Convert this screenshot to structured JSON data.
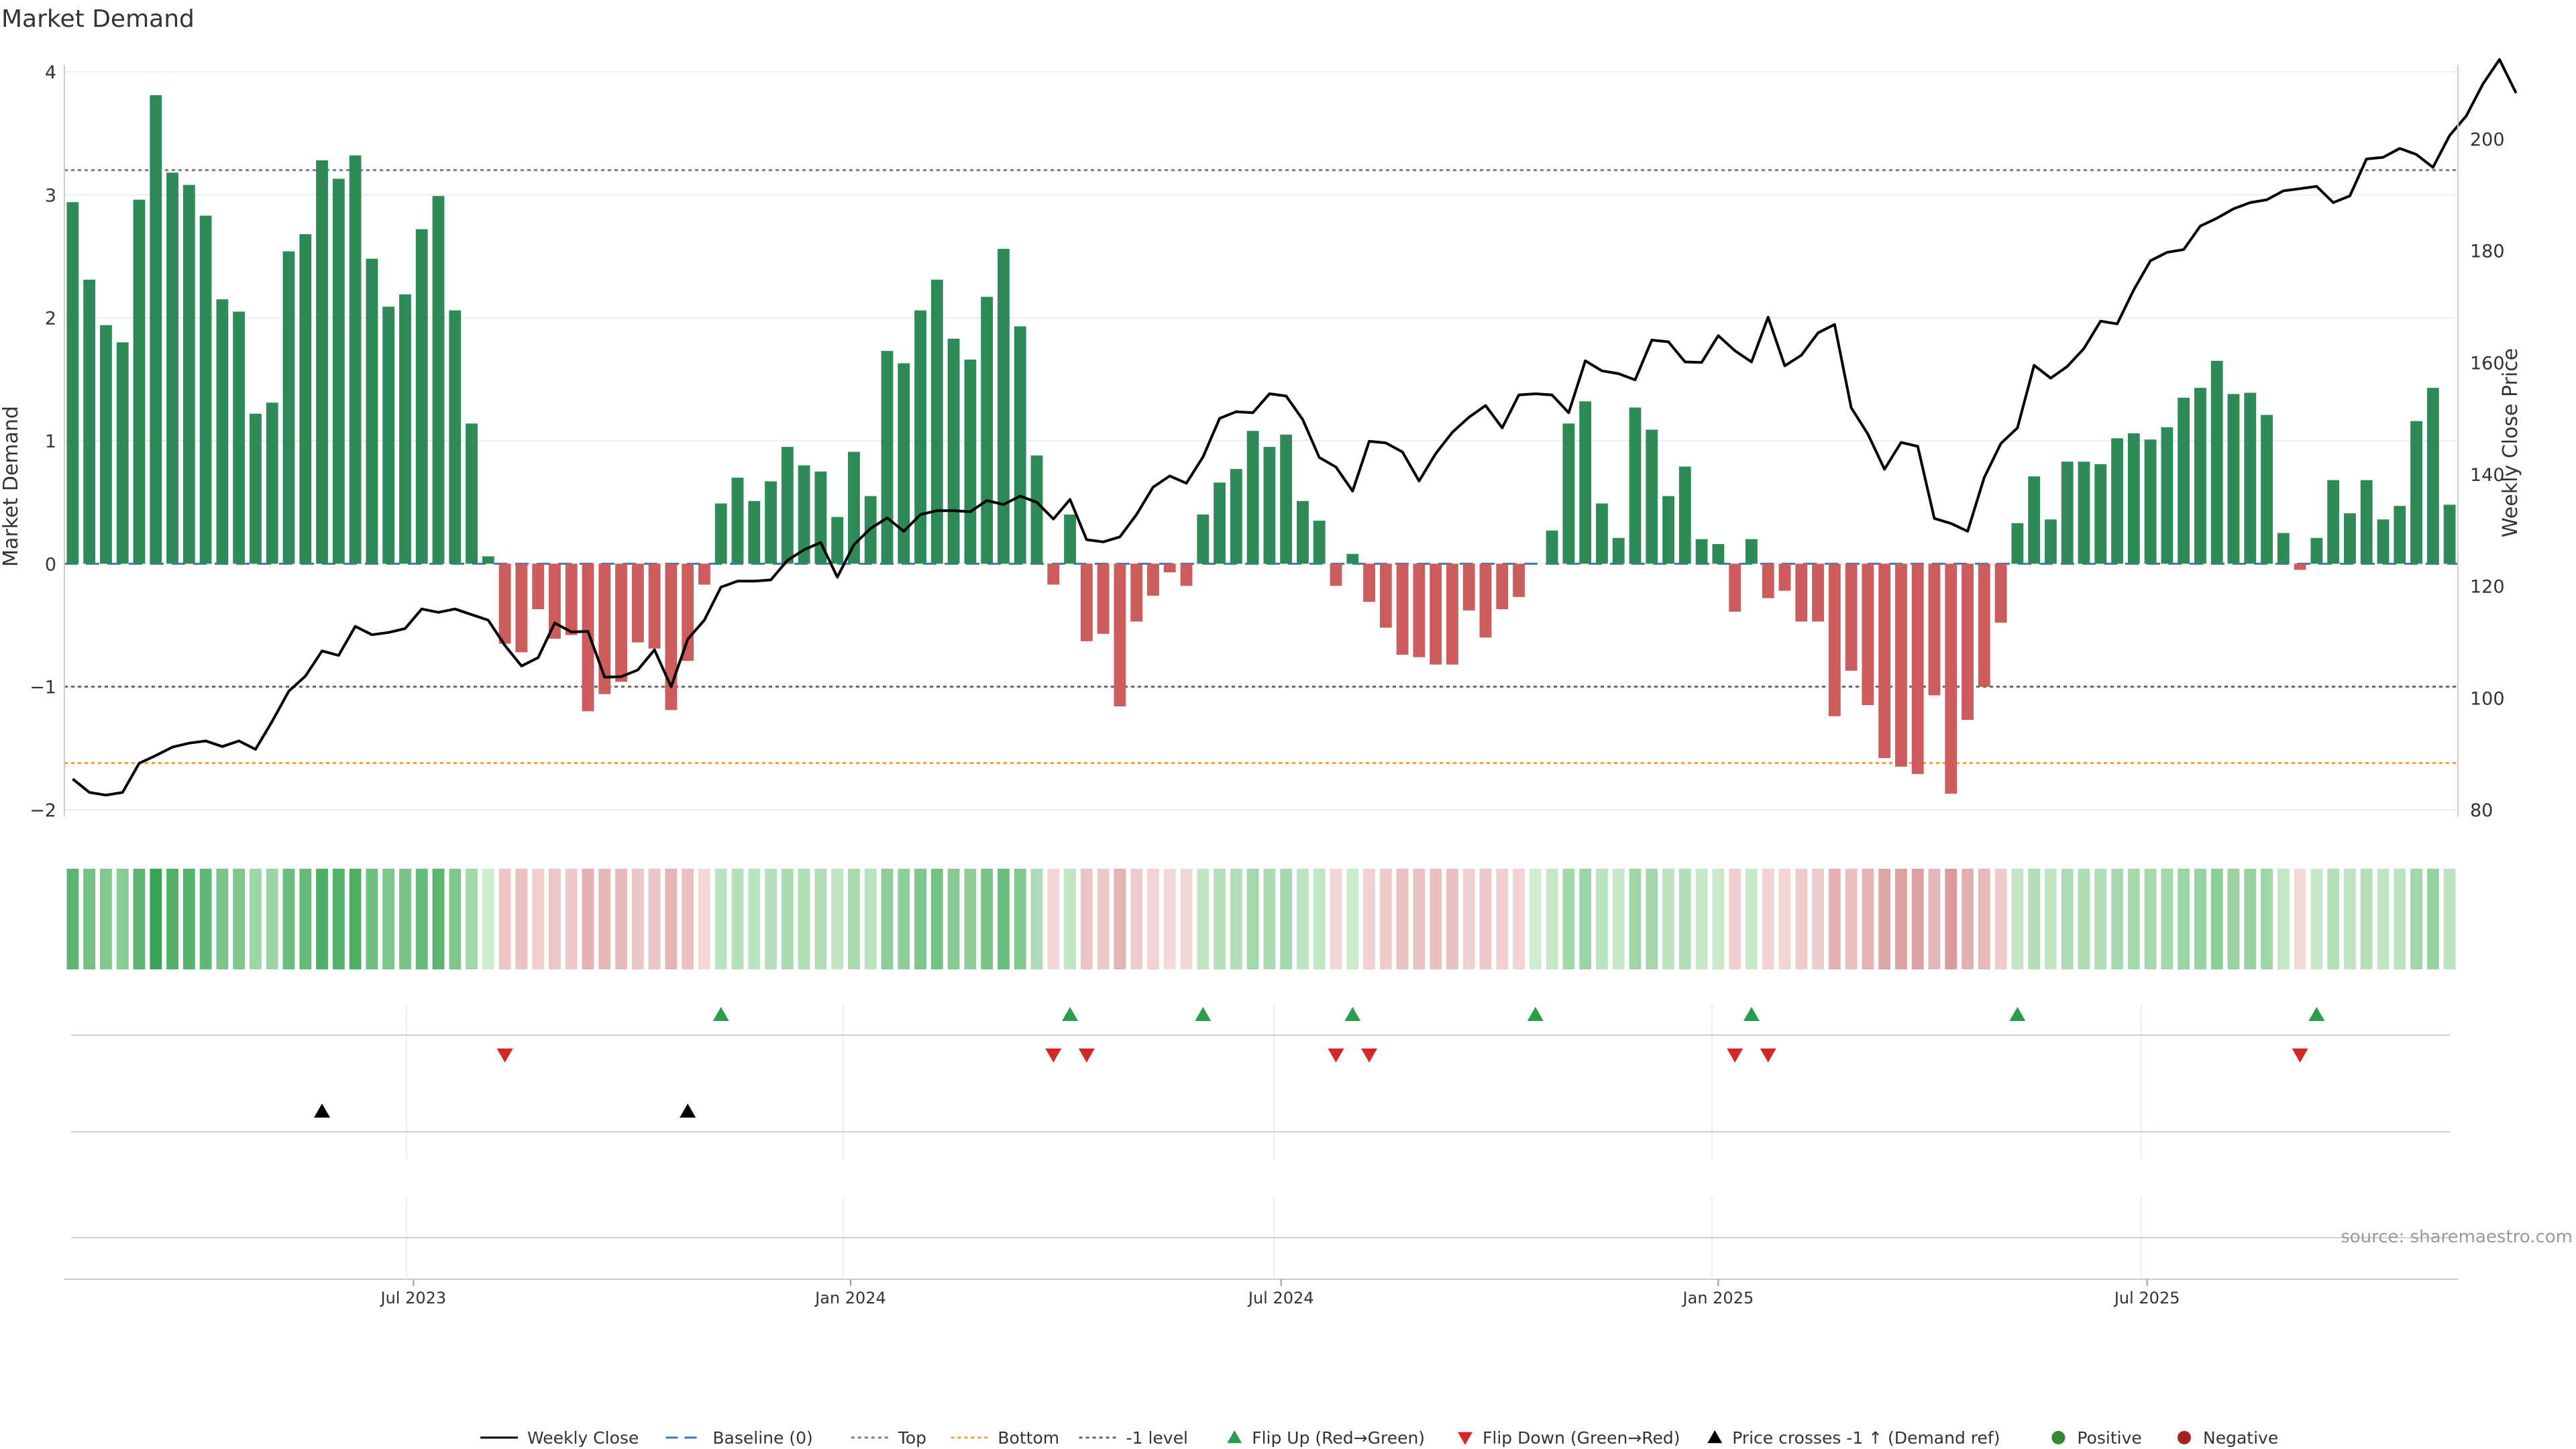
{
  "chart_data": {
    "type": "bar",
    "title": "Market Demand",
    "ylabel": "Market Demand",
    "ylabel_right": "Weekly Close Price",
    "ylim": [
      -2,
      4
    ],
    "ylim_right": [
      80,
      210
    ],
    "yticks": [
      {
        "value": 4,
        "label": "4"
      },
      {
        "value": 3,
        "label": "3"
      },
      {
        "value": 2,
        "label": "2"
      },
      {
        "value": 1,
        "label": "1"
      },
      {
        "value": 0,
        "label": "0"
      },
      {
        "value": -1,
        "label": "−1"
      },
      {
        "value": -2,
        "label": "−2"
      }
    ],
    "yticks_right": [
      {
        "value": 200,
        "label": "200"
      },
      {
        "value": 180,
        "label": "180"
      },
      {
        "value": 160,
        "label": "160"
      },
      {
        "value": 140,
        "label": "140"
      },
      {
        "value": 120,
        "label": "120"
      },
      {
        "value": 100,
        "label": "100"
      },
      {
        "value": 80,
        "label": "80"
      }
    ],
    "x_dates_range": [
      "2023-01-16",
      "2025-11-17"
    ],
    "xticks": [
      {
        "week_index": 20.5,
        "label": "Jul 2023"
      },
      {
        "week_index": 46.8,
        "label": "Jan 2024"
      },
      {
        "week_index": 72.7,
        "label": "Jul 2024"
      },
      {
        "week_index": 99,
        "label": "Jan 2025"
      },
      {
        "week_index": 124.8,
        "label": "Jul 2025"
      }
    ],
    "reference_lines": [
      {
        "name": "Top",
        "value": 3.2,
        "color": "#7a7a9a",
        "style": "dotted"
      },
      {
        "name": "Bottom",
        "value": -1.62,
        "color": "#f39c34",
        "style": "dotted"
      },
      {
        "name": "-1 level",
        "value": -1.0,
        "color": "#666666",
        "style": "dotted"
      },
      {
        "name": "Baseline (0)",
        "value": 0,
        "color": "#3a78c2",
        "style": "dashed"
      }
    ],
    "colors": {
      "positive": "#2e8b57",
      "negative": "#cd5c5c",
      "price": "#000000",
      "flip_up": "#2a9d4a",
      "flip_down": "#d62728",
      "cross": "#000000",
      "dot_positive": "#2e8b2e",
      "dot_negative": "#a52222",
      "grid": "#ececec",
      "axis": "#cccccc"
    },
    "demand": [
      2.94,
      2.31,
      1.94,
      1.8,
      2.96,
      3.81,
      3.18,
      3.08,
      2.83,
      2.15,
      2.05,
      1.22,
      1.31,
      2.54,
      2.68,
      3.28,
      3.13,
      3.32,
      2.48,
      2.09,
      2.19,
      2.72,
      2.99,
      2.06,
      1.14,
      0.06,
      -0.65,
      -0.72,
      -0.37,
      -0.61,
      -0.58,
      -1.2,
      -1.06,
      -0.96,
      -0.64,
      -0.69,
      -1.19,
      -0.79,
      -0.17,
      0.49,
      0.7,
      0.51,
      0.67,
      0.95,
      0.8,
      0.75,
      0.38,
      0.91,
      0.55,
      1.73,
      1.63,
      2.06,
      2.31,
      1.83,
      1.66,
      2.17,
      2.56,
      1.93,
      0.88,
      -0.17,
      0.4,
      -0.63,
      -0.57,
      -1.16,
      -0.47,
      -0.26,
      -0.07,
      -0.18,
      0.4,
      0.66,
      0.77,
      1.08,
      0.95,
      1.05,
      0.51,
      0.35,
      -0.18,
      0.08,
      -0.31,
      -0.52,
      -0.74,
      -0.76,
      -0.82,
      -0.82,
      -0.38,
      -0.6,
      -0.37,
      -0.27,
      0.0,
      0.27,
      1.14,
      1.32,
      0.49,
      0.21,
      1.27,
      1.09,
      0.55,
      0.79,
      0.2,
      0.16,
      -0.39,
      0.2,
      -0.28,
      -0.22,
      -0.47,
      -0.47,
      -1.24,
      -0.87,
      -1.15,
      -1.58,
      -1.65,
      -1.71,
      -1.07,
      -1.87,
      -1.27,
      -1.0,
      -0.48,
      0.33,
      0.71,
      0.36,
      0.83,
      0.83,
      0.81,
      1.02,
      1.06,
      1.01,
      1.11,
      1.35,
      1.43,
      1.65,
      1.38,
      1.39,
      1.21,
      0.25,
      -0.05,
      0.21,
      0.68,
      0.41,
      0.68,
      0.36,
      0.47,
      1.16,
      1.43,
      0.48
    ],
    "price": [
      85.5,
      83.1,
      82.6,
      83.1,
      88.3,
      89.7,
      91.2,
      91.9,
      92.3,
      91.3,
      92.3,
      90.8,
      95.8,
      101.2,
      103.9,
      108.4,
      107.6,
      112.8,
      111.3,
      111.7,
      112.4,
      115.9,
      115.3,
      115.9,
      114.9,
      113.9,
      109.4,
      105.7,
      107.2,
      113.4,
      111.8,
      111.9,
      103.7,
      103.8,
      105.0,
      108.6,
      102.0,
      110.5,
      113.9,
      119.8,
      120.9,
      120.9,
      121.1,
      124.6,
      126.5,
      127.8,
      121.6,
      127.4,
      130.3,
      132.2,
      129.8,
      132.8,
      133.5,
      133.5,
      133.3,
      135.3,
      134.6,
      136.1,
      135.0,
      132.0,
      135.5,
      128.3,
      127.9,
      128.8,
      132.8,
      137.7,
      139.7,
      138.4,
      143.1,
      150.0,
      151.2,
      151.0,
      154.4,
      154.0,
      149.8,
      143.0,
      141.3,
      137.0,
      145.9,
      145.6,
      144.0,
      138.8,
      143.7,
      147.5,
      150.2,
      152.3,
      148.3,
      154.2,
      154.4,
      154.2,
      151.0,
      160.3,
      158.5,
      158.0,
      156.9,
      164.0,
      163.7,
      160.1,
      160.0,
      164.8,
      162.1,
      160.1,
      168.1,
      159.4,
      161.3,
      165.3,
      166.8,
      151.9,
      147.2,
      140.9,
      145.7,
      145.0,
      132.1,
      131.2,
      129.8,
      139.4,
      145.5,
      148.3,
      159.5,
      157.2,
      159.3,
      162.5,
      167.4,
      166.9,
      173.0,
      178.2,
      179.7,
      180.2,
      184.4,
      185.8,
      187.5,
      188.6,
      189.1,
      190.7,
      191.1,
      191.5,
      188.6,
      189.8,
      196.4,
      196.7,
      198.3,
      197.2,
      194.9,
      200.6,
      204.1,
      209.8,
      214.2,
      208.2
    ],
    "flip_up_weeks": [
      39,
      60,
      68,
      77,
      88,
      101,
      117,
      135
    ],
    "flip_down_weeks": [
      26,
      59,
      61,
      76,
      78,
      100,
      102,
      134
    ],
    "price_cross_weeks": [
      15,
      37
    ],
    "annotation": "source: sharemaestro.com",
    "legend": [
      {
        "label": "Weekly Close",
        "kind": "line-solid",
        "color": "#000000"
      },
      {
        "label": "Baseline (0)",
        "kind": "line-dashed",
        "color": "#3a78c2"
      },
      {
        "label": "Top",
        "kind": "line-dotted",
        "color": "#7a7a9a"
      },
      {
        "label": "Bottom",
        "kind": "line-dotted",
        "color": "#f39c34"
      },
      {
        "label": "-1 level",
        "kind": "line-dotted",
        "color": "#666666"
      },
      {
        "label": "Flip Up (Red→Green)",
        "kind": "tri-up",
        "color": "#2a9d4a"
      },
      {
        "label": "Flip Down (Green→Red)",
        "kind": "tri-down",
        "color": "#d62728"
      },
      {
        "label": "Price crosses -1 ↑ (Demand ref)",
        "kind": "tri-up",
        "color": "#000000"
      },
      {
        "label": "Positive",
        "kind": "dot",
        "color": "#2e8b2e"
      },
      {
        "label": "Negative",
        "kind": "dot",
        "color": "#a52222"
      }
    ],
    "legend_placement": "bottom-center"
  }
}
